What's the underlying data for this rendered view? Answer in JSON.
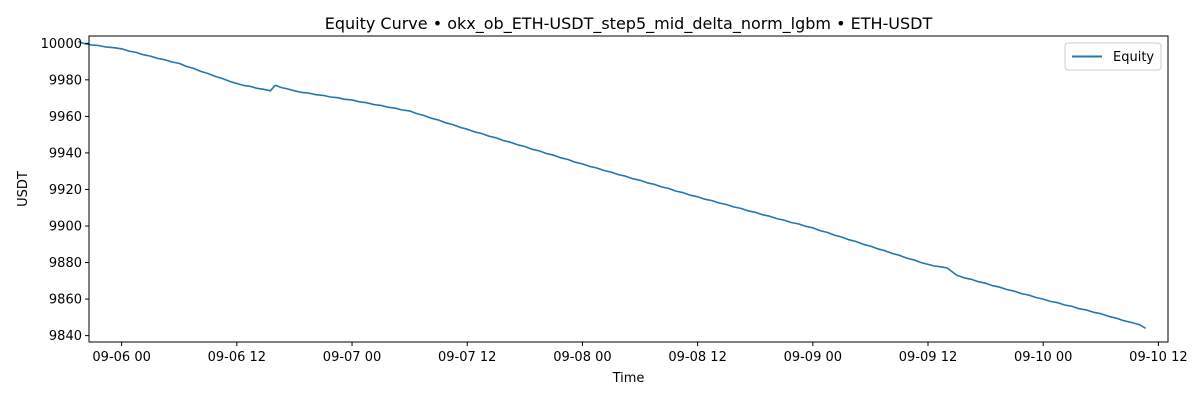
{
  "chart_data": {
    "type": "line",
    "title": "Equity Curve • okx_ob_ETH-USDT_step5_mid_delta_norm_lgbm • ETH-USDT",
    "xlabel": "Time",
    "ylabel": "USDT",
    "xlim": [
      "2025-09-05 20:36",
      "2025-09-10 13:00"
    ],
    "ylim": [
      9836.5,
      10004
    ],
    "xticks": [
      "09-06 00",
      "09-06 12",
      "09-07 00",
      "09-07 12",
      "09-08 00",
      "09-08 12",
      "09-09 00",
      "09-09 12",
      "09-10 00",
      "09-10 12"
    ],
    "yticks": [
      9840,
      9860,
      9880,
      9900,
      9920,
      9940,
      9960,
      9980,
      10000
    ],
    "grid": false,
    "legend_position": "top-right",
    "series": [
      {
        "name": "Equity",
        "color": "#1f77b4",
        "points": [
          [
            "2025-09-05 19:30",
            10001
          ],
          [
            "2025-09-05 20:00",
            10000
          ],
          [
            "2025-09-06 00:00",
            9997
          ],
          [
            "2025-09-06 06:00",
            9989
          ],
          [
            "2025-09-06 12:00",
            9978
          ],
          [
            "2025-09-06 15:30",
            9974
          ],
          [
            "2025-09-06 16:00",
            9977
          ],
          [
            "2025-09-06 18:00",
            9974
          ],
          [
            "2025-09-07 00:00",
            9969
          ],
          [
            "2025-09-07 06:00",
            9963
          ],
          [
            "2025-09-07 12:00",
            9953
          ],
          [
            "2025-09-08 00:00",
            9934
          ],
          [
            "2025-09-08 12:00",
            9916
          ],
          [
            "2025-09-09 00:00",
            9899
          ],
          [
            "2025-09-09 12:00",
            9879
          ],
          [
            "2025-09-09 14:00",
            9877
          ],
          [
            "2025-09-09 15:00",
            9873
          ],
          [
            "2025-09-10 00:00",
            9860
          ],
          [
            "2025-09-10 06:00",
            9852
          ],
          [
            "2025-09-10 10:00",
            9846
          ],
          [
            "2025-09-10 10:40",
            9844
          ]
        ]
      }
    ]
  }
}
